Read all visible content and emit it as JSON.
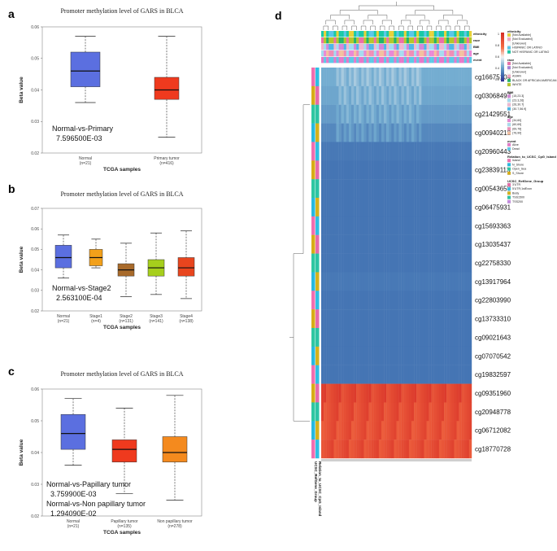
{
  "panels": [
    {
      "letter": "a",
      "chart_data": {
        "type": "boxplot",
        "title": "Promoter methylation level of GARS in BLCA",
        "xlabel": "TCGA samples",
        "ylabel": "Beta value",
        "ylim": [
          0.02,
          0.06
        ],
        "yticks": [
          "0.02",
          "0.03",
          "0.04",
          "0.05",
          "0.06"
        ],
        "categories": [
          "Normal",
          "Primary tumor"
        ],
        "counts": [
          "(n=21)",
          "(n=416)"
        ],
        "colors": [
          "#5b6fe0",
          "#ef3a1e"
        ],
        "boxes": [
          {
            "min": 0.036,
            "q1": 0.041,
            "median": 0.046,
            "q3": 0.052,
            "max": 0.057
          },
          {
            "min": 0.025,
            "q1": 0.037,
            "median": 0.04,
            "q3": 0.044,
            "max": 0.057
          }
        ],
        "annotations": [
          "Normal-vs-Primary",
          "7.596500E-03"
        ]
      }
    },
    {
      "letter": "b",
      "chart_data": {
        "type": "boxplot",
        "title": "Promoter methylation level of GARS in BLCA",
        "xlabel": "TCGA samples",
        "ylabel": "Beta value",
        "ylim": [
          0.02,
          0.07
        ],
        "yticks": [
          "0.02",
          "0.03",
          "0.04",
          "0.05",
          "0.06",
          "0.07"
        ],
        "categories": [
          "Normal",
          "Stage1",
          "Stage2",
          "Stage3",
          "Stage4"
        ],
        "counts": [
          "(n=21)",
          "(n=4)",
          "(n=131)",
          "(n=141)",
          "(n=138)"
        ],
        "colors": [
          "#5b6fe0",
          "#f2a01a",
          "#a86a2a",
          "#a6cf1c",
          "#e8451e"
        ],
        "boxes": [
          {
            "min": 0.036,
            "q1": 0.041,
            "median": 0.046,
            "q3": 0.052,
            "max": 0.057
          },
          {
            "min": 0.041,
            "q1": 0.042,
            "median": 0.046,
            "q3": 0.05,
            "max": 0.055
          },
          {
            "min": 0.027,
            "q1": 0.037,
            "median": 0.04,
            "q3": 0.043,
            "max": 0.053
          },
          {
            "min": 0.028,
            "q1": 0.037,
            "median": 0.041,
            "q3": 0.045,
            "max": 0.058
          },
          {
            "min": 0.026,
            "q1": 0.037,
            "median": 0.041,
            "q3": 0.046,
            "max": 0.059
          }
        ],
        "annotations": [
          "Normal-vs-Stage2",
          "2.563100E-04"
        ]
      }
    },
    {
      "letter": "c",
      "chart_data": {
        "type": "boxplot",
        "title": "Promoter methylation level of GARS in BLCA",
        "xlabel": "TCGA samples",
        "ylabel": "Beta value",
        "ylim": [
          0.02,
          0.06
        ],
        "yticks": [
          "0.02",
          "0.03",
          "0.04",
          "0.05",
          "0.06"
        ],
        "categories": [
          "Normal",
          "Papillary tumor",
          "Non papillary tumor"
        ],
        "counts": [
          "(n=21)",
          "(n=135)",
          "(n=278)"
        ],
        "colors": [
          "#5b6fe0",
          "#ef3a1e",
          "#f48a1e"
        ],
        "boxes": [
          {
            "min": 0.036,
            "q1": 0.041,
            "median": 0.046,
            "q3": 0.052,
            "max": 0.057
          },
          {
            "min": 0.027,
            "q1": 0.037,
            "median": 0.041,
            "q3": 0.044,
            "max": 0.054
          },
          {
            "min": 0.025,
            "q1": 0.037,
            "median": 0.04,
            "q3": 0.045,
            "max": 0.058
          }
        ],
        "annotations": [
          "Normal-vs-Papillary tumor",
          "3.759900E-03",
          "Normal-vs-Non papillary tumor",
          "1.294090E-02"
        ]
      }
    }
  ],
  "heatmap": {
    "letter": "d",
    "chart_data": {
      "type": "heatmap",
      "rows": [
        "cg16675104",
        "cg03068497",
        "cg21429551",
        "cg00940212",
        "cg20960443",
        "cg23839113",
        "cg00543658",
        "cg06475931",
        "cg15693363",
        "cg13035437",
        "cg22758330",
        "cg13917964",
        "cg22803990",
        "cg13733310",
        "cg09021643",
        "cg07070542",
        "cg19832597",
        "cg09351960",
        "cg20948778",
        "cg06712082",
        "cg18770728"
      ],
      "row_values": [
        0.3,
        0.28,
        0.25,
        0.2,
        0.16,
        0.15,
        0.15,
        0.15,
        0.15,
        0.15,
        0.15,
        0.16,
        0.15,
        0.15,
        0.15,
        0.15,
        0.15,
        0.95,
        0.92,
        0.9,
        0.91
      ],
      "color_scale_ticks": [
        "1",
        "0.8",
        "0.6",
        "0.4",
        "0.2"
      ],
      "top_tracks": [
        "ethnicity",
        "race",
        "BMI",
        "age",
        "event"
      ],
      "bottom_labels": [
        "UCSC_RefGene_Group",
        "Relation_to_UCSC_CpG_Island"
      ],
      "legend_groups": [
        {
          "title": "ethnicity",
          "items": [
            {
              "label": "[Not Available]",
              "color": "#e7d23a"
            },
            {
              "label": "[Not Evaluated]",
              "color": "#f3a6c2"
            },
            {
              "label": "[Unknown]",
              "color": "#ffffff"
            },
            {
              "label": "HISPANIC OR LATINO",
              "color": "#5ac7e8"
            },
            {
              "label": "NOT HISPANIC OR LATINO",
              "color": "#19c9a6"
            }
          ]
        },
        {
          "title": "race",
          "items": [
            {
              "label": "[Not Available]",
              "color": "#ec6fa8"
            },
            {
              "label": "[Not Evaluated]",
              "color": "#a783d9"
            },
            {
              "label": "[Unknown]",
              "color": "#ffffff"
            },
            {
              "label": "ASIAN",
              "color": "#f3a6c2"
            },
            {
              "label": "BLACK OR AFRICAN AMERICAN",
              "color": "#23b36a"
            },
            {
              "label": "WHITE",
              "color": "#b5c62b"
            }
          ]
        },
        {
          "title": "BMI",
          "items": [
            {
              "label": "(15,23.3]",
              "color": "#d787d8"
            },
            {
              "label": "(23.3,26]",
              "color": "#a4dcf2"
            },
            {
              "label": "(26,30.7]",
              "color": "#f0b6d2"
            },
            {
              "label": "(30.7,56.9]",
              "color": "#4fb8e8"
            }
          ]
        },
        {
          "title": "age",
          "items": [
            {
              "label": "(34,60]",
              "color": "#e989d6"
            },
            {
              "label": "(60,69]",
              "color": "#a7dbef"
            },
            {
              "label": "(69,76]",
              "color": "#ef8fb8"
            },
            {
              "label": "(76,90]",
              "color": "#f3c0a0"
            }
          ]
        },
        {
          "title": "event",
          "items": [
            {
              "label": "Alive",
              "color": "#e579c9"
            },
            {
              "label": "Dead",
              "color": "#5ec8e6"
            }
          ]
        },
        {
          "title": "Relation_to_UCSC_CpG_Island",
          "items": [
            {
              "label": "Island",
              "color": "#f06fb0"
            },
            {
              "label": "N_Shore",
              "color": "#27b9e0"
            },
            {
              "label": "Open_Sea",
              "color": "#2ec7a2"
            },
            {
              "label": "S_Shore",
              "color": "#d7ad17"
            }
          ]
        },
        {
          "title": "UCSC_RefGene_Group",
          "items": [
            {
              "label": "3'UTR",
              "color": "#e66aa9"
            },
            {
              "label": "5'UTR;1stExon",
              "color": "#2fbfe3"
            },
            {
              "label": "Body",
              "color": "#d5b21c"
            },
            {
              "label": "TSS1500",
              "color": "#2bc4a4"
            },
            {
              "label": "TSS200",
              "color": "#c48be0"
            }
          ]
        }
      ]
    }
  }
}
